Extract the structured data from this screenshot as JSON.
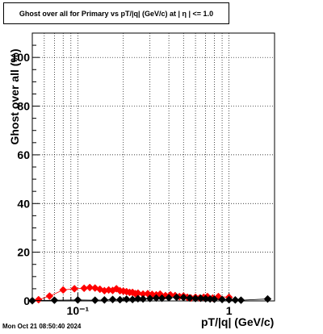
{
  "chart_data": {
    "type": "scatter",
    "title": "Ghost over all for Primary vs pT/|q| (GeV/c) at |  η  | <= 1.0",
    "xlabel": "pT/|q| (GeV/c)",
    "ylabel": "Ghost over all (%)",
    "x_scale": "log",
    "xlim": [
      0.05,
      2.0
    ],
    "ylim": [
      0,
      110
    ],
    "grid": true,
    "x_ticks": [
      {
        "value": 0.1,
        "label": "10⁻¹"
      },
      {
        "value": 1,
        "label": "1"
      }
    ],
    "y_ticks": [
      {
        "value": 0,
        "label": "0"
      },
      {
        "value": 20,
        "label": "20"
      },
      {
        "value": 40,
        "label": "40"
      },
      {
        "value": 60,
        "label": "60"
      },
      {
        "value": 80,
        "label": "80"
      },
      {
        "value": 100,
        "label": "100"
      }
    ],
    "series": [
      {
        "color": "#ff0000",
        "x": [
          0.055,
          0.065,
          0.08,
          0.095,
          0.11,
          0.12,
          0.13,
          0.14,
          0.15,
          0.16,
          0.17,
          0.18,
          0.19,
          0.2,
          0.21,
          0.22,
          0.23,
          0.24,
          0.25,
          0.27,
          0.29,
          0.31,
          0.33,
          0.35,
          0.38,
          0.41,
          0.44,
          0.47,
          0.5,
          0.53,
          0.56,
          0.6,
          0.64,
          0.68,
          0.72,
          0.78,
          0.85,
          1.0
        ],
        "y": [
          0.5,
          2,
          4.5,
          5,
          5.2,
          5.5,
          5.3,
          4.8,
          4.2,
          4.5,
          4.3,
          5,
          4.2,
          4,
          3.8,
          3.5,
          3.5,
          3,
          3.2,
          2.8,
          3,
          2.7,
          2.5,
          2.8,
          2.2,
          2.5,
          2.2,
          1.8,
          2,
          1.5,
          1.2,
          1.5,
          1.2,
          1.5,
          1.8,
          1.2,
          1.8,
          1.5
        ]
      },
      {
        "color": "#000000",
        "x": [
          0.05,
          0.07,
          0.1,
          0.13,
          0.15,
          0.17,
          0.19,
          0.21,
          0.23,
          0.25,
          0.27,
          0.3,
          0.33,
          0.36,
          0.4,
          0.45,
          0.5,
          0.55,
          0.6,
          0.65,
          0.7,
          0.75,
          0.8,
          0.9,
          1.0,
          1.1,
          1.2,
          1.8
        ],
        "y": [
          0.1,
          0.3,
          0.4,
          0.3,
          0.4,
          0.6,
          0.5,
          0.7,
          0.6,
          0.9,
          0.8,
          1.0,
          1.2,
          1.1,
          1.3,
          1.5,
          1.4,
          1.2,
          1.0,
          1.1,
          0.9,
          0.8,
          0.7,
          0.6,
          0.5,
          0.4,
          0.3,
          0.8
        ]
      }
    ],
    "footer": "Mon Oct 21 08:50:40 2024"
  }
}
